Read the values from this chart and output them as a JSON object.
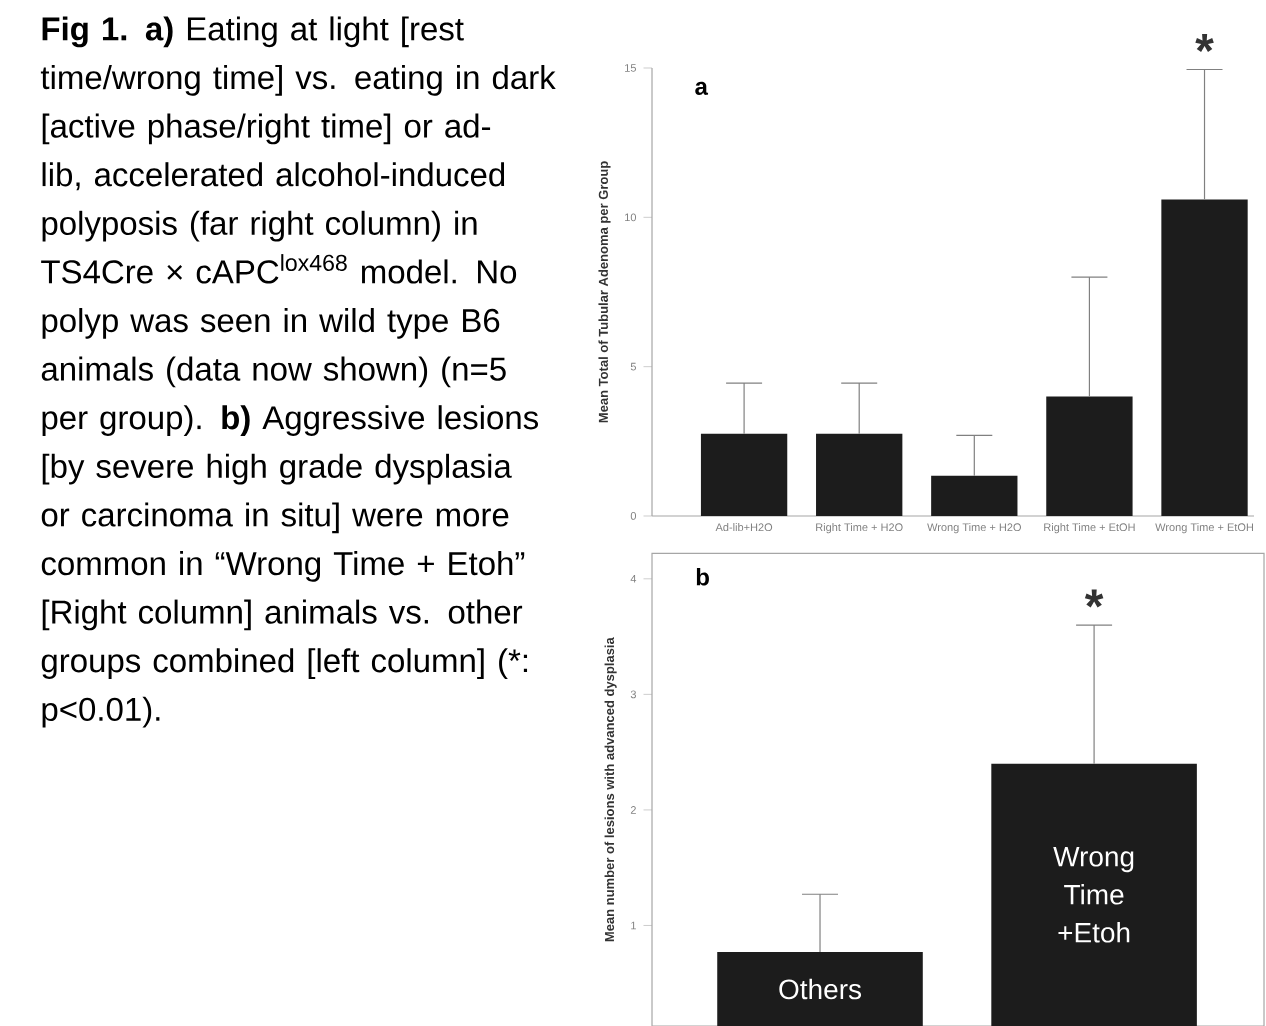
{
  "chart_data": [
    {
      "type": "other",
      "annotations": [
        "**Fig 1. a)** Eating at light [rest time/wrong time] vs. eating in dark [active phase/right time] or ad-lib, accelerated alcohol-induced polyposis (far right column) in TS4Cre × cAPC$^{lox468}$ model. No polyp was seen in wild type B6 animals (data now shown) (n=5 per group). **b)** Aggressive lesions [by severe high grade dysplasia or carcinoma in situ]  were more common in “Wrong Time + Etoh” [Right column] animals vs. other groups combined [left column] (*: p<0.01)."
      ]
    },
    {
      "type": "bar",
      "categories": [
        "Ad-lib+H2O",
        "Right Time + H2O",
        "Wrong Time + H2O",
        "Right Time + EtOH",
        "Wrong Time + EtOH"
      ],
      "values": [
        2.75,
        2.75,
        1.35,
        4.0,
        10.6
      ],
      "errors": [
        [
          2.75,
          4.45
        ],
        [
          2.75,
          4.45
        ],
        [
          1.35,
          2.7
        ],
        [
          4.0,
          8.0
        ],
        [
          10.6,
          14.95
        ]
      ],
      "color": "#1c1c1c",
      "ylabel": "Mean Total of Tubular Adenoma per Group",
      "ylim": [
        0,
        15
      ],
      "yticks": [
        0,
        5,
        10,
        15
      ],
      "annotations": [
        "a",
        {
          "text": "*",
          "x": "Wrong Time + EtOH",
          "y": 14.95
        }
      ]
    },
    {
      "type": "bar",
      "categories": [
        "Others",
        "Wrong Time +Etoh"
      ],
      "values": [
        0.77,
        2.4
      ],
      "errors": [
        [
          0.77,
          1.27
        ],
        [
          2.4,
          3.6
        ]
      ],
      "color": "#1c1c1c",
      "ylabel": "Mean number of lesions with advanced dysplasia",
      "ylim": [
        0.13,
        4.22
      ],
      "yticks": [
        1,
        2,
        3,
        4
      ],
      "tick_labels": "y",
      "annotations": [
        "b",
        {
          "text": "*",
          "x": "Wrong Time +Etoh",
          "y": 3.6
        }
      ]
    }
  ]
}
